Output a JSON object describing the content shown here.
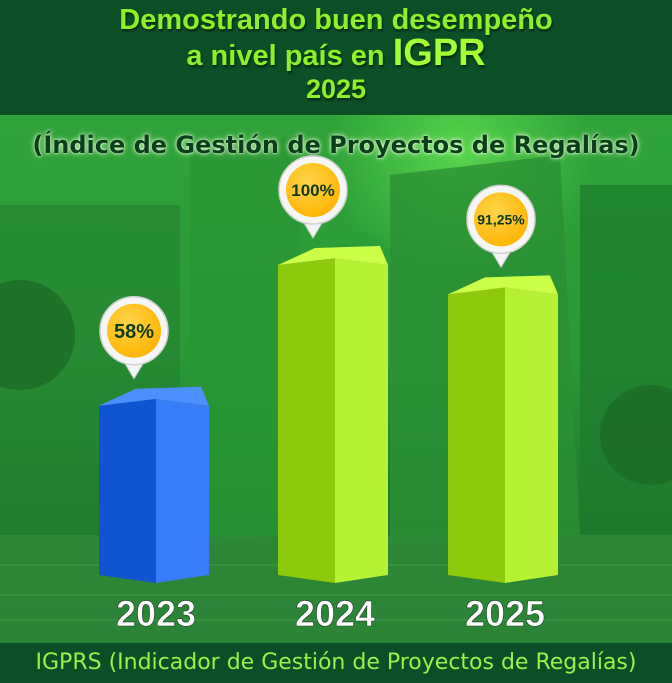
{
  "header": {
    "line1": "Demostrando buen desempeño",
    "line2_prefix": "a nivel país en ",
    "line2_emphasis": "IGPR",
    "line3": "2025"
  },
  "subtitle": "(Índice de Gestión de Proyectos de Regalías)",
  "footer": "IGPRS (Indicador de Gestión de Proyectos de Regalías)",
  "colors": {
    "bar_2023": "#1f63e0",
    "bar_2024": "#9ed81a",
    "bar_2025": "#9ed81a",
    "badge": "#ffb300"
  },
  "chart_data": {
    "type": "bar",
    "categories": [
      "2023",
      "2024",
      "2025"
    ],
    "values": [
      58,
      100,
      91.25
    ],
    "data_labels": [
      "58%",
      "100%",
      "91,25%"
    ],
    "ylim": [
      0,
      100
    ],
    "grid": false,
    "legend": "none"
  }
}
